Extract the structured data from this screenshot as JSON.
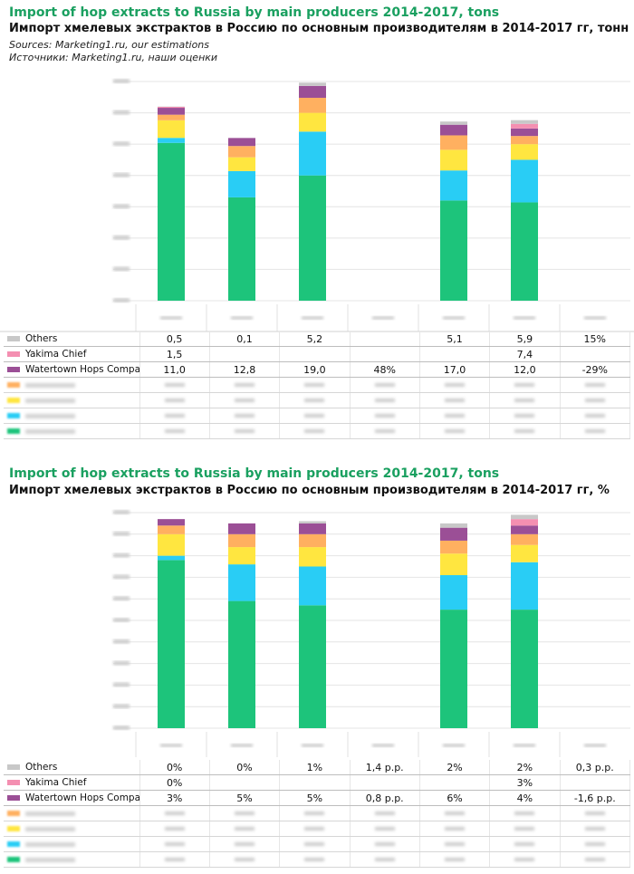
{
  "colors": {
    "others": "#c8c8c8",
    "yakima": "#f48fb1",
    "watertown": "#9b4f96",
    "orange": "#ffb060",
    "yellow": "#ffe640",
    "cyan": "#29cdf5",
    "green": "#1dc47b"
  },
  "chart1": {
    "title": "Import of hop extracts to Russia by main producers 2014-2017, tons",
    "title_ru": "Импорт хмелевых экстрактов в Россию по основным производителям в 2014-2017 гг, тонн",
    "source_en": "Sources: Marketing1.ru, our estimations",
    "source_ru": "Источники: Marketing1.ru, наши оценки"
  },
  "chart2": {
    "title": "Import of hop extracts to Russia by main producers 2014-2017, tons",
    "title_ru": "Импорт хмелевых экстрактов в Россию по основным производителям в 2014-2017 гг, %"
  },
  "chart_data": [
    {
      "type": "bar",
      "title": "Import of hop extracts to Russia by main producers 2014-2017, tons",
      "ylim": [
        0,
        350
      ],
      "bars": [
        {
          "segments": [
            252,
            8,
            28,
            9,
            11.0,
            1.5,
            0.5
          ]
        },
        {
          "segments": [
            165,
            42,
            22,
            18,
            12.8,
            0,
            0.1
          ]
        },
        {
          "segments": [
            200,
            70,
            30,
            24,
            19.0,
            0,
            5.2
          ]
        },
        {
          "segments": [
            0,
            0,
            0,
            0,
            0,
            0,
            0
          ]
        },
        {
          "segments": [
            160,
            48,
            33,
            23,
            17.0,
            0,
            5.1
          ]
        },
        {
          "segments": [
            157,
            68,
            25,
            13,
            12.0,
            7.4,
            5.9
          ]
        },
        {
          "segments": [
            0,
            0,
            0,
            0,
            0,
            0,
            0
          ]
        }
      ],
      "table": [
        {
          "label": "Others",
          "color": "others",
          "values": [
            "0,5",
            "0,1",
            "5,2",
            "",
            "5,1",
            "5,9",
            "15%"
          ]
        },
        {
          "label": "Yakima Chief",
          "color": "yakima",
          "values": [
            "1,5",
            "",
            "",
            "",
            "",
            "7,4",
            ""
          ]
        },
        {
          "label": "Watertown Hops Company",
          "color": "watertown",
          "values": [
            "11,0",
            "12,8",
            "19,0",
            "48%",
            "17,0",
            "12,0",
            "-29%"
          ]
        }
      ]
    },
    {
      "type": "bar",
      "title": "Import of hop extracts to Russia by main producers 2014-2017, tons",
      "ylim": [
        0,
        100
      ],
      "bars": [
        {
          "segments": [
            78,
            2,
            10,
            4,
            3,
            0,
            0
          ]
        },
        {
          "segments": [
            59,
            17,
            8,
            6,
            5,
            0,
            0
          ]
        },
        {
          "segments": [
            57,
            18,
            9,
            6,
            5,
            0,
            1
          ]
        },
        {
          "segments": [
            0,
            0,
            0,
            0,
            0,
            0,
            0
          ]
        },
        {
          "segments": [
            55,
            16,
            10,
            6,
            6,
            0,
            2
          ]
        },
        {
          "segments": [
            55,
            22,
            8,
            5,
            4,
            3,
            2
          ]
        },
        {
          "segments": [
            0,
            0,
            0,
            0,
            0,
            0,
            0
          ]
        }
      ],
      "table": [
        {
          "label": "Others",
          "color": "others",
          "values": [
            "0%",
            "0%",
            "1%",
            "1,4 p.p.",
            "2%",
            "2%",
            "0,3 p.p."
          ]
        },
        {
          "label": "Yakima Chief",
          "color": "yakima",
          "values": [
            "0%",
            "",
            "",
            "",
            "",
            "3%",
            ""
          ]
        },
        {
          "label": "Watertown Hops Company",
          "color": "watertown",
          "values": [
            "3%",
            "5%",
            "5%",
            "0,8 p.p.",
            "6%",
            "4%",
            "-1,6 p.p."
          ]
        }
      ]
    }
  ]
}
